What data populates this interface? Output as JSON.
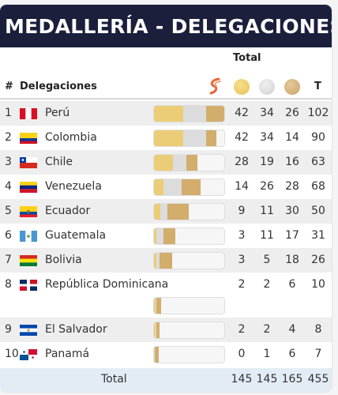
{
  "title": "MEDALLERÍA - DELEGACIONES",
  "total_header": "Total",
  "columns": {
    "rank": "#",
    "delegation": "Delegaciones",
    "total": "T"
  },
  "icons": {
    "sport": "sport-logo-icon",
    "gold": "gold-medal-icon",
    "silver": "silver-medal-icon",
    "bronze": "bronze-medal-icon"
  },
  "colors": {
    "header_bg": "#1b1f3c",
    "gold": "#ebcd78",
    "silver": "#dcdcdc",
    "bronze": "#d2ad6c",
    "footer_bg": "#e3ecf5"
  },
  "rows": [
    {
      "rank": "1",
      "name": "Perú",
      "flag": "peru",
      "gold": "42",
      "silver": "34",
      "bronze": "26",
      "total": "102"
    },
    {
      "rank": "2",
      "name": "Colombia",
      "flag": "colombia",
      "gold": "42",
      "silver": "34",
      "bronze": "14",
      "total": "90"
    },
    {
      "rank": "3",
      "name": "Chile",
      "flag": "chile",
      "gold": "28",
      "silver": "19",
      "bronze": "16",
      "total": "63"
    },
    {
      "rank": "4",
      "name": "Venezuela",
      "flag": "venezuela",
      "gold": "14",
      "silver": "26",
      "bronze": "28",
      "total": "68"
    },
    {
      "rank": "5",
      "name": "Ecuador",
      "flag": "ecuador",
      "gold": "9",
      "silver": "11",
      "bronze": "30",
      "total": "50"
    },
    {
      "rank": "6",
      "name": "Guatemala",
      "flag": "guatemala",
      "gold": "3",
      "silver": "11",
      "bronze": "17",
      "total": "31"
    },
    {
      "rank": "7",
      "name": "Bolivia",
      "flag": "bolivia",
      "gold": "3",
      "silver": "5",
      "bronze": "18",
      "total": "26"
    },
    {
      "rank": "8",
      "name": "República Dominicana",
      "flag": "dominican-republic",
      "gold": "2",
      "silver": "2",
      "bronze": "6",
      "total": "10"
    },
    {
      "rank": "9",
      "name": "El Salvador",
      "flag": "el-salvador",
      "gold": "2",
      "silver": "2",
      "bronze": "4",
      "total": "8"
    },
    {
      "rank": "10",
      "name": "Panamá",
      "flag": "panama",
      "gold": "0",
      "silver": "1",
      "bronze": "6",
      "total": "7"
    }
  ],
  "footer": {
    "label": "Total",
    "gold": "145",
    "silver": "145",
    "bronze": "165",
    "total": "455"
  }
}
